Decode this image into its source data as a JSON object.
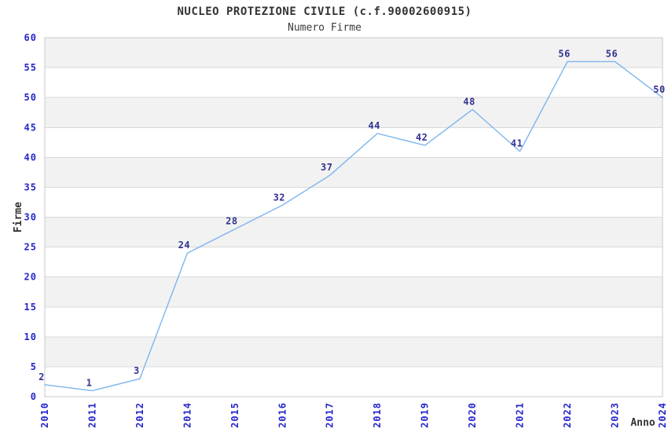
{
  "chart_data": {
    "type": "line",
    "title": "NUCLEO PROTEZIONE CIVILE (c.f.90002600915)",
    "subtitle": "Numero Firme",
    "xlabel": "Anno",
    "ylabel": "Firme",
    "categories": [
      "2010",
      "2011",
      "2012",
      "2014",
      "2015",
      "2016",
      "2017",
      "2018",
      "2019",
      "2020",
      "2021",
      "2022",
      "2023",
      "2024"
    ],
    "values": [
      2,
      1,
      3,
      24,
      28,
      32,
      37,
      44,
      42,
      48,
      41,
      56,
      56,
      50
    ],
    "ylim": [
      0,
      60
    ],
    "ytick_step": 5,
    "grid": "horizontal-only",
    "alternating_bands": true,
    "markers": "none",
    "legend": "none",
    "colors": {
      "line": "#7CB5EC",
      "tick_label": "#2525CD",
      "data_label": "#333392",
      "band": "#F2F2F2",
      "gridline": "#D9D9D9",
      "plot_border": "#C9C9C9",
      "title_text": "#333333",
      "background": "#FFFFFF"
    }
  }
}
